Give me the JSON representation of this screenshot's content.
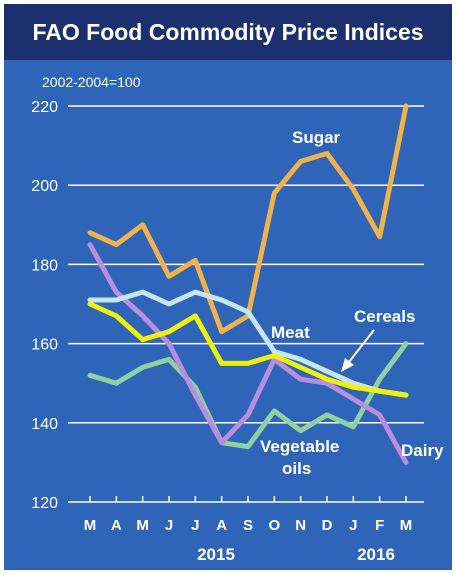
{
  "title": "FAO Food Commodity Price Indices",
  "chart_data": {
    "type": "line",
    "base_note": "2002-2004=100",
    "categories": [
      "M",
      "A",
      "M",
      "J",
      "J",
      "A",
      "S",
      "O",
      "N",
      "D",
      "J",
      "F",
      "M"
    ],
    "years": [
      "2015",
      "2016"
    ],
    "ylim": [
      120,
      220
    ],
    "yticks": [
      120,
      140,
      160,
      180,
      200,
      220
    ],
    "grid": true,
    "series": [
      {
        "name": "Sugar",
        "color": "#f2b24a",
        "values": [
          188,
          185,
          190,
          177,
          181,
          163,
          167,
          198,
          206,
          208,
          199,
          187,
          220
        ]
      },
      {
        "name": "Meat",
        "color": "#c6e6f6",
        "values": [
          171,
          171,
          173,
          170,
          173,
          171,
          168,
          158,
          156,
          153,
          150,
          148,
          147
        ]
      },
      {
        "name": "Cereals",
        "color": "#eef20c",
        "values": [
          170,
          167,
          161,
          163,
          167,
          155,
          155,
          157,
          154,
          151,
          149,
          148,
          147
        ]
      },
      {
        "name": "Vegetable oils",
        "color": "#8fd1a0",
        "values": [
          152,
          150,
          154,
          156,
          149,
          135,
          134,
          143,
          138,
          142,
          139,
          151,
          160
        ]
      },
      {
        "name": "Dairy",
        "color": "#b98ee0",
        "values": [
          185,
          173,
          167,
          160,
          147,
          135,
          142,
          156,
          151,
          150,
          146,
          142,
          130
        ]
      }
    ],
    "series_labels": {
      "sugar": "Sugar",
      "meat": "Meat",
      "cereals": "Cereals",
      "vegoils_line1": "Vegetable",
      "vegoils_line2": "oils",
      "dairy": "Dairy"
    }
  }
}
